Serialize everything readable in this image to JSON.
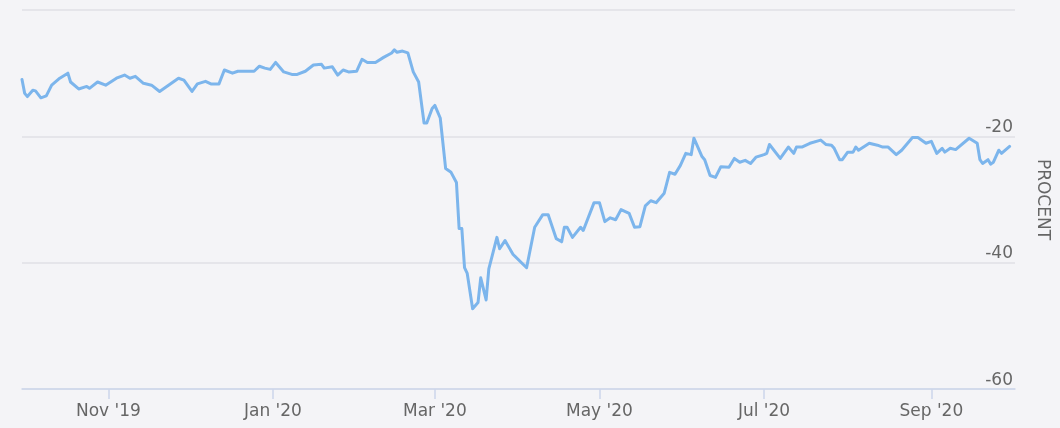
{
  "chart_data": {
    "type": "line",
    "y2label": "PROCENT",
    "x": [
      "2019-09-30",
      "2019-10-01",
      "2019-10-02",
      "2019-10-04",
      "2019-10-05",
      "2019-10-07",
      "2019-10-09",
      "2019-10-11",
      "2019-10-14",
      "2019-10-17",
      "2019-10-18",
      "2019-10-21",
      "2019-10-24",
      "2019-10-25",
      "2019-10-28",
      "2019-10-31",
      "2019-11-04",
      "2019-11-07",
      "2019-11-09",
      "2019-11-11",
      "2019-11-14",
      "2019-11-17",
      "2019-11-20",
      "2019-11-27",
      "2019-11-29",
      "2019-12-02",
      "2019-12-04",
      "2019-12-07",
      "2019-12-09",
      "2019-12-12",
      "2019-12-14",
      "2019-12-17",
      "2019-12-19",
      "2019-12-25",
      "2019-12-27",
      "2019-12-29",
      "2019-12-31",
      "2020-01-02",
      "2020-01-05",
      "2020-01-08",
      "2020-01-10",
      "2020-01-13",
      "2020-01-16",
      "2020-01-19",
      "2020-01-20",
      "2020-01-23",
      "2020-01-25",
      "2020-01-27",
      "2020-01-29",
      "2020-02-01",
      "2020-02-03",
      "2020-02-05",
      "2020-02-08",
      "2020-02-11",
      "2020-02-14",
      "2020-02-15",
      "2020-02-16",
      "2020-02-18",
      "2020-02-20",
      "2020-02-22",
      "2020-02-24",
      "2020-02-26",
      "2020-02-27",
      "2020-02-29",
      "2020-03-01",
      "2020-03-03",
      "2020-03-05",
      "2020-03-07",
      "2020-03-09",
      "2020-03-10",
      "2020-03-11",
      "2020-03-12",
      "2020-03-13",
      "2020-03-15",
      "2020-03-17",
      "2020-03-18",
      "2020-03-20",
      "2020-03-21",
      "2020-03-24",
      "2020-03-25",
      "2020-03-27",
      "2020-03-30",
      "2020-04-04",
      "2020-04-07",
      "2020-04-10",
      "2020-04-12",
      "2020-04-15",
      "2020-04-17",
      "2020-04-18",
      "2020-04-19",
      "2020-04-21",
      "2020-04-24",
      "2020-04-25",
      "2020-04-29",
      "2020-05-01",
      "2020-05-03",
      "2020-05-05",
      "2020-05-07",
      "2020-05-09",
      "2020-05-12",
      "2020-05-14",
      "2020-05-16",
      "2020-05-18",
      "2020-05-20",
      "2020-05-22",
      "2020-05-25",
      "2020-05-27",
      "2020-05-29",
      "2020-05-31",
      "2020-06-02",
      "2020-06-04",
      "2020-06-05",
      "2020-06-08",
      "2020-06-09",
      "2020-06-11",
      "2020-06-13",
      "2020-06-15",
      "2020-06-18",
      "2020-06-20",
      "2020-06-22",
      "2020-06-24",
      "2020-06-26",
      "2020-06-28",
      "2020-07-01",
      "2020-07-02",
      "2020-07-03",
      "2020-07-07",
      "2020-07-10",
      "2020-07-12",
      "2020-07-13",
      "2020-07-15",
      "2020-07-18",
      "2020-07-22",
      "2020-07-24",
      "2020-07-26",
      "2020-07-27",
      "2020-07-29",
      "2020-07-30",
      "2020-08-01",
      "2020-08-03",
      "2020-08-04",
      "2020-08-05",
      "2020-08-09",
      "2020-08-12",
      "2020-08-14",
      "2020-08-16",
      "2020-08-17",
      "2020-08-19",
      "2020-08-21",
      "2020-08-25",
      "2020-08-27",
      "2020-08-30",
      "2020-09-01",
      "2020-09-03",
      "2020-09-05",
      "2020-09-06",
      "2020-09-08",
      "2020-09-10",
      "2020-09-15",
      "2020-09-18",
      "2020-09-19",
      "2020-09-20",
      "2020-09-22",
      "2020-09-23",
      "2020-09-24",
      "2020-09-26",
      "2020-09-27",
      "2020-09-30"
    ],
    "series": [
      {
        "color": "#7cb5ec",
        "axis": "y2",
        "values": [
          -11.0,
          -13.2,
          -13.7,
          -12.7,
          -12.8,
          -13.9,
          -13.6,
          -11.9,
          -10.8,
          -10.0,
          -11.4,
          -12.5,
          -12.1,
          -12.4,
          -11.4,
          -11.9,
          -10.8,
          -10.3,
          -10.8,
          -10.5,
          -11.6,
          -11.9,
          -12.9,
          -10.8,
          -11.1,
          -12.9,
          -11.7,
          -11.3,
          -11.7,
          -11.7,
          -9.5,
          -10.0,
          -9.7,
          -9.7,
          -8.9,
          -9.2,
          -9.4,
          -8.3,
          -9.8,
          -10.2,
          -10.2,
          -9.7,
          -8.7,
          -8.6,
          -9.2,
          -9.0,
          -10.3,
          -9.5,
          -9.8,
          -9.7,
          -7.8,
          -8.3,
          -8.3,
          -7.5,
          -6.8,
          -6.3,
          -6.7,
          -6.5,
          -6.8,
          -9.8,
          -11.4,
          -17.9,
          -17.9,
          -15.6,
          -15.1,
          -17.1,
          -25.1,
          -25.7,
          -27.3,
          -34.6,
          -34.6,
          -40.8,
          -41.7,
          -47.3,
          -46.3,
          -42.4,
          -45.9,
          -41.0,
          -36.0,
          -37.8,
          -36.5,
          -38.7,
          -40.8,
          -34.4,
          -32.4,
          -32.4,
          -36.2,
          -36.7,
          -34.4,
          -34.4,
          -36.0,
          -34.4,
          -34.9,
          -30.5,
          -30.5,
          -33.5,
          -32.9,
          -33.2,
          -31.6,
          -32.2,
          -34.4,
          -34.3,
          -31.0,
          -30.2,
          -30.5,
          -29.0,
          -25.7,
          -26.0,
          -24.6,
          -22.7,
          -22.9,
          -20.3,
          -23.2,
          -23.7,
          -26.2,
          -26.5,
          -24.8,
          -24.9,
          -23.5,
          -24.1,
          -23.8,
          -24.3,
          -23.3,
          -22.9,
          -22.7,
          -21.3,
          -23.5,
          -21.7,
          -22.7,
          -21.7,
          -21.7,
          -21.1,
          -20.6,
          -21.3,
          -21.4,
          -21.9,
          -23.7,
          -23.7,
          -22.5,
          -22.5,
          -21.7,
          -22.2,
          -21.1,
          -21.4,
          -21.7,
          -21.7,
          -22.1,
          -22.9,
          -22.2,
          -20.2,
          -20.2,
          -21.1,
          -20.8,
          -22.7,
          -21.9,
          -22.5,
          -21.9,
          -22.1,
          -20.3,
          -21.1,
          -23.7,
          -24.3,
          -23.7,
          -24.4,
          -24.1,
          -22.2,
          -22.7,
          -21.6
        ]
      }
    ],
    "xlim": [
      "2019-09-30",
      "2020-10-02"
    ],
    "xticks": [
      {
        "value": "2019-11-01",
        "label": "Nov '19"
      },
      {
        "value": "2020-01-01",
        "label": "Jan '20"
      },
      {
        "value": "2020-03-01",
        "label": "Mar '20"
      },
      {
        "value": "2020-05-01",
        "label": "May '20"
      },
      {
        "value": "2020-07-01",
        "label": "Jul '20"
      },
      {
        "value": "2020-09-01",
        "label": "Sep '20"
      }
    ],
    "y2lim": [
      -60,
      0
    ],
    "y2ticks": [
      {
        "value": 0,
        "label": null
      },
      -20,
      -40,
      -60
    ],
    "grid": "y",
    "marker": "none",
    "line_style": "solid"
  }
}
